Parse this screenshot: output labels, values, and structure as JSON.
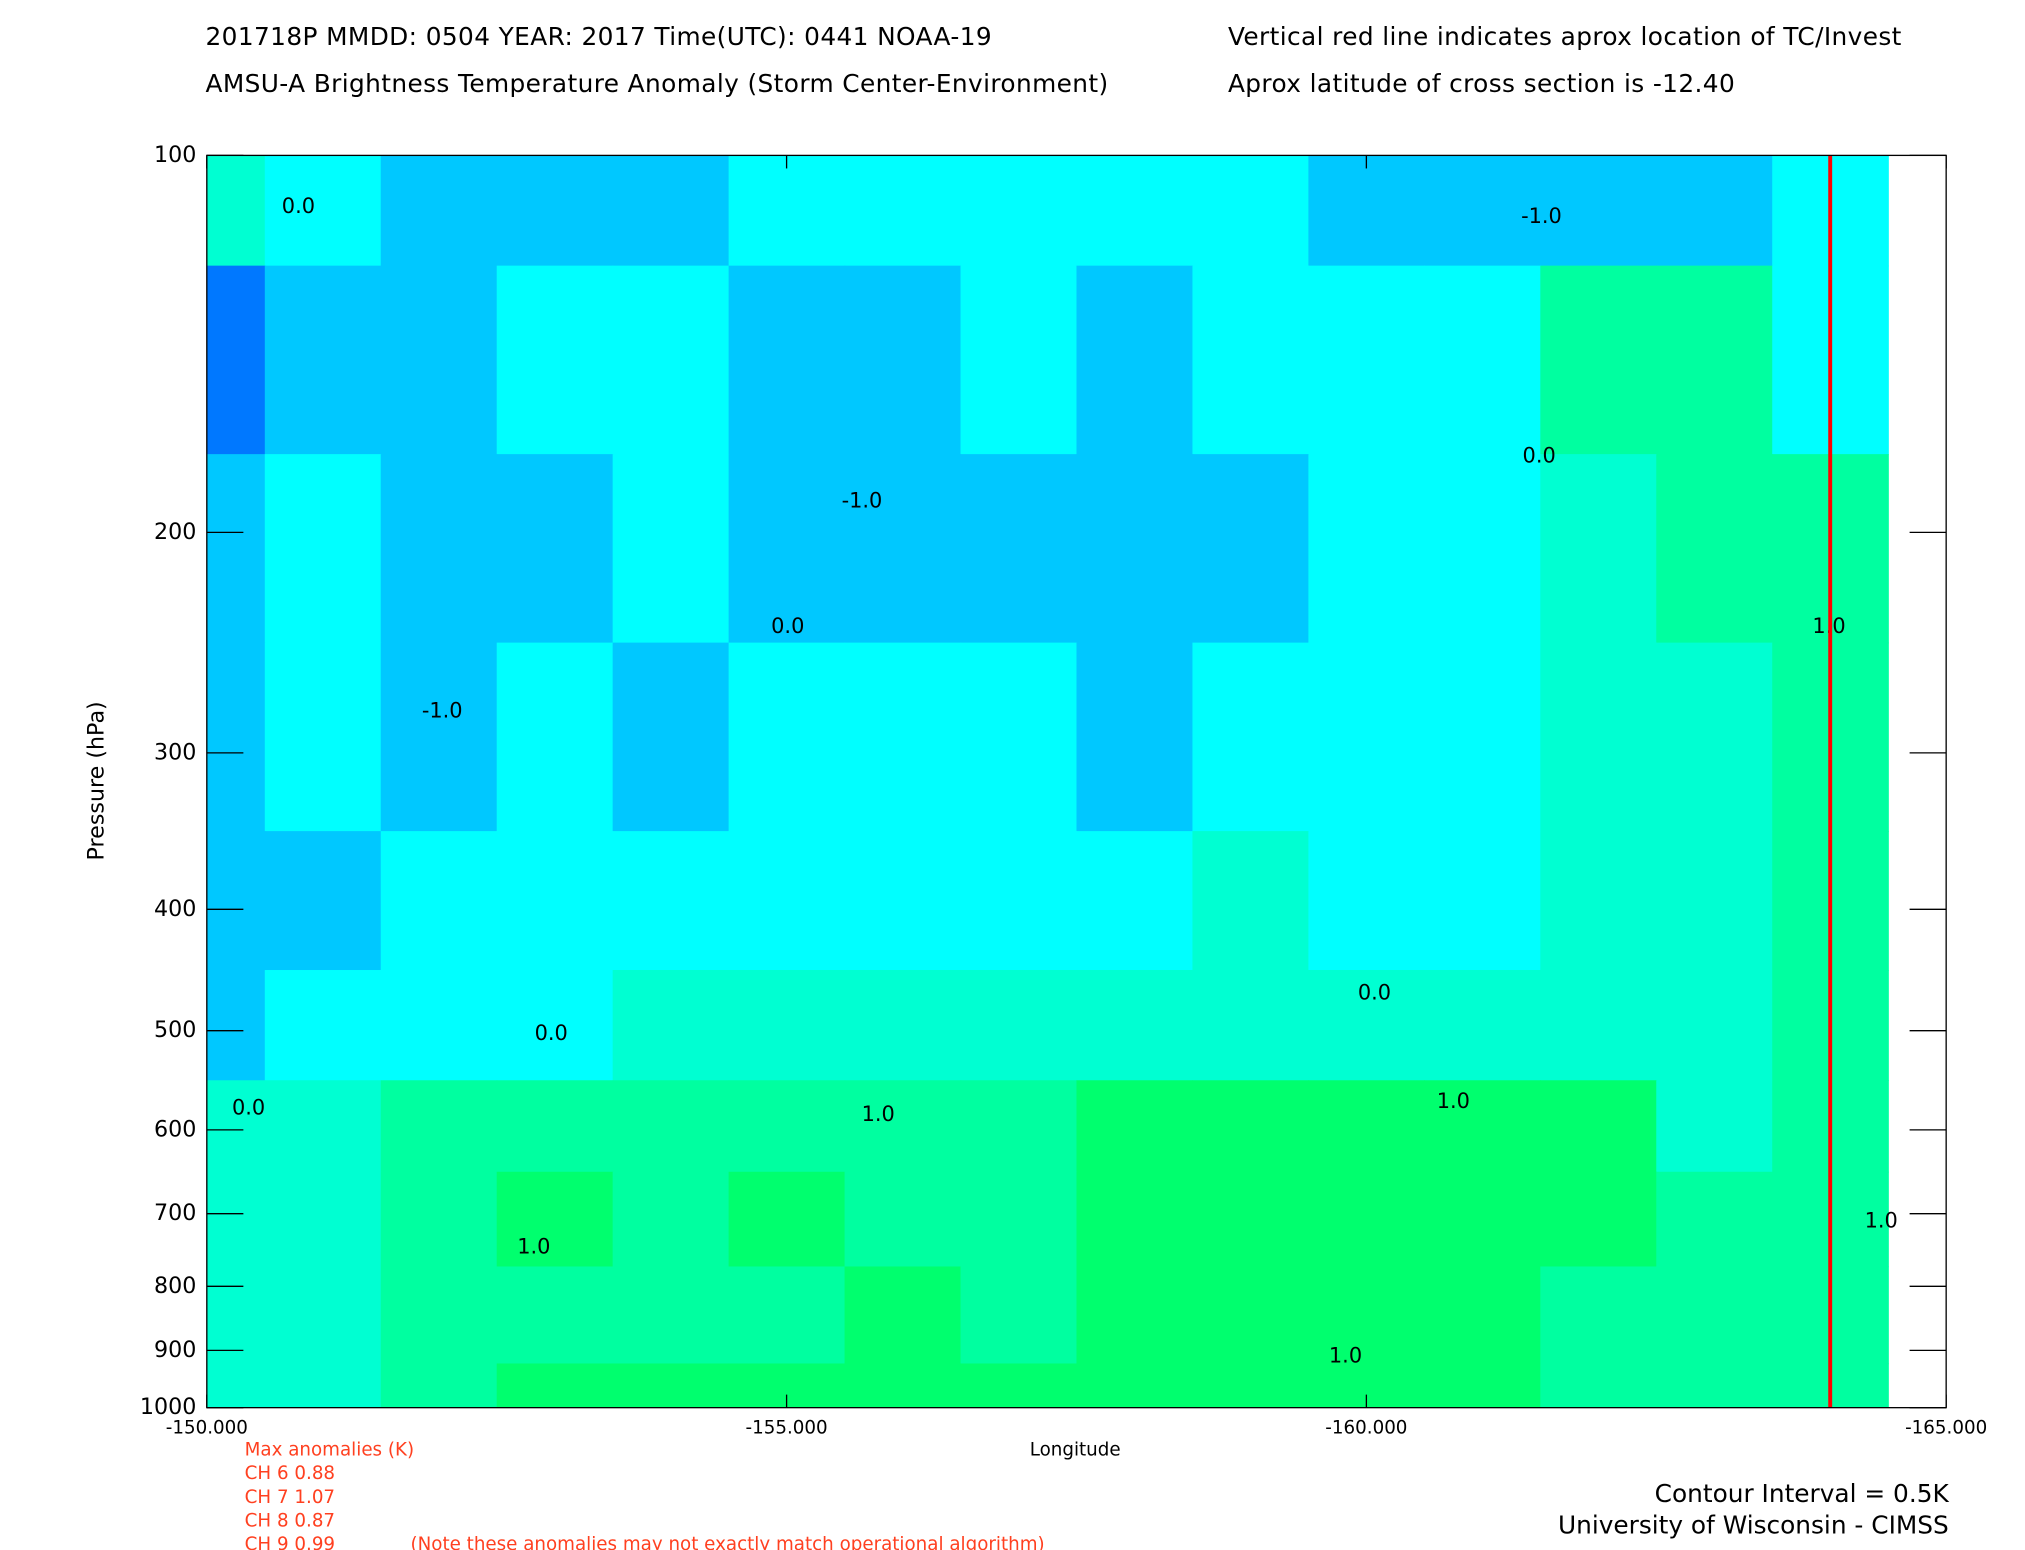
{
  "chart_data": {
    "type": "contour",
    "header": [
      "201718P  MMDD: 0504 YEAR: 2017 Time(UTC): 0441 NOAA-19",
      "AMSU-A Brightness Temperature Anomaly (Storm Center-Environment)",
      "Vertical red line indicates aprox location of TC/Invest",
      "Aprox latitude of cross section is -12.40"
    ],
    "x_label": "Longitude",
    "y_label": "Pressure (hPa)",
    "x": [
      -150,
      -151,
      -152,
      -153,
      -154,
      -155,
      -156,
      -157,
      -158,
      -159,
      -160,
      -161,
      -162,
      -163,
      -164
    ],
    "y": [
      100,
      150,
      200,
      300,
      400,
      500,
      600,
      700,
      850,
      1000
    ],
    "z": [
      [
        0.2,
        -0.3,
        -0.8,
        -0.8,
        -0.8,
        -0.3,
        -0.3,
        -0.3,
        -0.3,
        -0.3,
        -0.8,
        -0.8,
        -0.8,
        -0.8,
        -0.3
      ],
      [
        -1.8,
        -0.8,
        -0.6,
        -0.3,
        -0.3,
        -0.7,
        -0.8,
        -0.3,
        -0.8,
        -0.3,
        -0.3,
        -0.2,
        0.6,
        0.7,
        -0.3
      ],
      [
        -0.8,
        -0.3,
        -0.7,
        -0.8,
        -0.3,
        -0.7,
        -0.8,
        -0.8,
        -0.8,
        -0.6,
        -0.3,
        -0.3,
        0.3,
        0.7,
        0.7
      ],
      [
        -0.8,
        -0.3,
        -0.8,
        -0.3,
        -0.7,
        -0.3,
        -0.3,
        -0.3,
        -0.7,
        -0.3,
        -0.3,
        -0.3,
        0.2,
        0.4,
        0.7
      ],
      [
        -0.8,
        -0.7,
        -0.3,
        -0.3,
        -0.3,
        -0.3,
        -0.3,
        -0.3,
        -0.3,
        0.1,
        -0.2,
        -0.2,
        0.2,
        0.4,
        0.6
      ],
      [
        -0.6,
        -0.3,
        -0.2,
        -0.1,
        0.1,
        0.1,
        0.1,
        0.1,
        0.2,
        0.2,
        0.1,
        0.2,
        0.3,
        0.4,
        0.5
      ],
      [
        0.2,
        0.3,
        0.6,
        0.8,
        0.7,
        0.7,
        0.8,
        0.7,
        1.1,
        1.1,
        1.1,
        1.1,
        1.1,
        0.4,
        0.6
      ],
      [
        0.3,
        0.4,
        0.6,
        1.1,
        0.8,
        1.1,
        0.9,
        0.7,
        1.1,
        1.1,
        1.1,
        1.1,
        1.1,
        0.7,
        0.6
      ],
      [
        0.3,
        0.4,
        0.7,
        0.9,
        0.7,
        0.7,
        1.1,
        0.7,
        1.1,
        1.1,
        1.1,
        1.1,
        0.9,
        0.6,
        0.6
      ],
      [
        0.3,
        0.4,
        0.7,
        1.1,
        1.1,
        1.1,
        1.1,
        1.1,
        1.1,
        1.1,
        1.1,
        1.1,
        0.8,
        0.6,
        0.6
      ]
    ],
    "levels": [
      -2,
      -1.5,
      -1,
      -0.5,
      0,
      0.5,
      1,
      1.5
    ],
    "colors": [
      "#0046ff",
      "#0078ff",
      "#00a0ff",
      "#00c8ff",
      "#00ffff",
      "#00ffd2",
      "#00ffa0",
      "#00ff6e",
      "#00ff3c"
    ],
    "xlim": [
      -150,
      -165
    ],
    "ylim": [
      100,
      1000
    ],
    "log_y": true,
    "xticks": [
      {
        "value": -150,
        "label": "-150.000"
      },
      {
        "value": -155,
        "label": "-155.000"
      },
      {
        "value": -160,
        "label": "-160.000"
      },
      {
        "value": -165,
        "label": "-165.000"
      }
    ],
    "yticks": [
      100,
      200,
      300,
      400,
      500,
      600,
      700,
      800,
      900,
      1000
    ],
    "storm_lon": -164.0,
    "storm_color": "#ff0000",
    "contour_labels": [
      {
        "text": "0.0",
        "lon": -150.79,
        "p": 110
      },
      {
        "text": "-1.0",
        "lon": -152.03,
        "p": 278
      },
      {
        "text": "-1.0",
        "lon": -155.65,
        "p": 189
      },
      {
        "text": "0.0",
        "lon": -155.01,
        "p": 238
      },
      {
        "text": "-1.0",
        "lon": -161.51,
        "p": 112
      },
      {
        "text": "0.0",
        "lon": -161.49,
        "p": 174
      },
      {
        "text": "1.0",
        "lon": -163.99,
        "p": 238
      },
      {
        "text": "0.0",
        "lon": -152.97,
        "p": 503
      },
      {
        "text": "0.0",
        "lon": -150.36,
        "p": 577
      },
      {
        "text": "1.0",
        "lon": -155.79,
        "p": 584
      },
      {
        "text": "0.0",
        "lon": -160.07,
        "p": 467
      },
      {
        "text": "1.0",
        "lon": -160.75,
        "p": 570
      },
      {
        "text": "1.0",
        "lon": -152.82,
        "p": 745
      },
      {
        "text": "1.0",
        "lon": -159.82,
        "p": 910
      },
      {
        "text": "1.0",
        "lon": -164.44,
        "p": 710
      }
    ],
    "max_anomalies": [
      "Max anomalies (K)",
      "CH 6  0.88",
      "CH 7  1.07",
      "CH 8  0.87",
      "CH 9  0.99"
    ],
    "note": "(Note these anomalies may not exactly match operational algorithm)",
    "footer": [
      "Contour Interval = 0.5K",
      "University of Wisconsin - CIMSS"
    ]
  }
}
